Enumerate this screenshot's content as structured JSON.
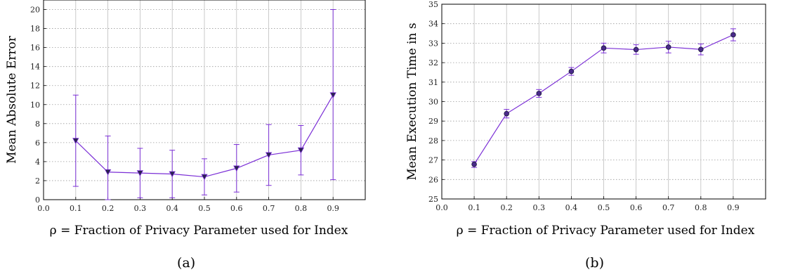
{
  "chart_data": [
    {
      "type": "line",
      "title": "",
      "xlabel": "ρ = Fraction of Privacy Parameter used for Index",
      "ylabel": "Mean Absolute Error",
      "xlim": [
        0.0,
        1.0
      ],
      "ylim": [
        0,
        21
      ],
      "xticks": [
        "0.0",
        "0.1",
        "0.2",
        "0.3",
        "0.4",
        "0.5",
        "0.6",
        "0.7",
        "0.8",
        "0.9"
      ],
      "yticks": [
        "0",
        "2",
        "4",
        "6",
        "8",
        "10",
        "12",
        "14",
        "16",
        "18",
        "20"
      ],
      "grid": true,
      "marker": "triangle-down",
      "color": "#7b2fd6",
      "series": [
        {
          "x": [
            0.1,
            0.2,
            0.3,
            0.4,
            0.5,
            0.6,
            0.7,
            0.8,
            0.9
          ],
          "values": [
            6.2,
            2.9,
            2.8,
            2.7,
            2.4,
            3.3,
            4.7,
            5.2,
            11.0
          ],
          "err_low": [
            1.4,
            0.0,
            0.2,
            0.2,
            0.5,
            0.8,
            1.5,
            2.6,
            2.1
          ],
          "err_high": [
            11.0,
            6.7,
            5.4,
            5.2,
            4.3,
            5.8,
            7.9,
            7.8,
            20.0
          ]
        }
      ],
      "caption": "(a)"
    },
    {
      "type": "line",
      "title": "",
      "xlabel": "ρ = Fraction of Privacy Parameter used for Index",
      "ylabel": "Mean Execution Time in s",
      "xlim": [
        0.0,
        1.0
      ],
      "ylim": [
        25,
        35
      ],
      "xticks": [
        "0.0",
        "0.1",
        "0.2",
        "0.3",
        "0.4",
        "0.5",
        "0.6",
        "0.7",
        "0.8",
        "0.9"
      ],
      "yticks": [
        "25",
        "26",
        "27",
        "28",
        "29",
        "30",
        "31",
        "32",
        "33",
        "34",
        "35"
      ],
      "grid": true,
      "marker": "circle",
      "color": "#7b2fd6",
      "series": [
        {
          "x": [
            0.1,
            0.2,
            0.3,
            0.4,
            0.5,
            0.6,
            0.7,
            0.8,
            0.9
          ],
          "values": [
            26.78,
            29.38,
            30.42,
            31.55,
            32.75,
            32.67,
            32.8,
            32.68,
            33.43
          ],
          "err_low": [
            26.62,
            29.16,
            30.22,
            31.35,
            32.5,
            32.43,
            32.5,
            32.4,
            33.12
          ],
          "err_high": [
            26.92,
            29.6,
            30.62,
            31.75,
            33.0,
            32.92,
            33.1,
            32.96,
            33.74
          ]
        }
      ],
      "caption": "(b)"
    }
  ]
}
